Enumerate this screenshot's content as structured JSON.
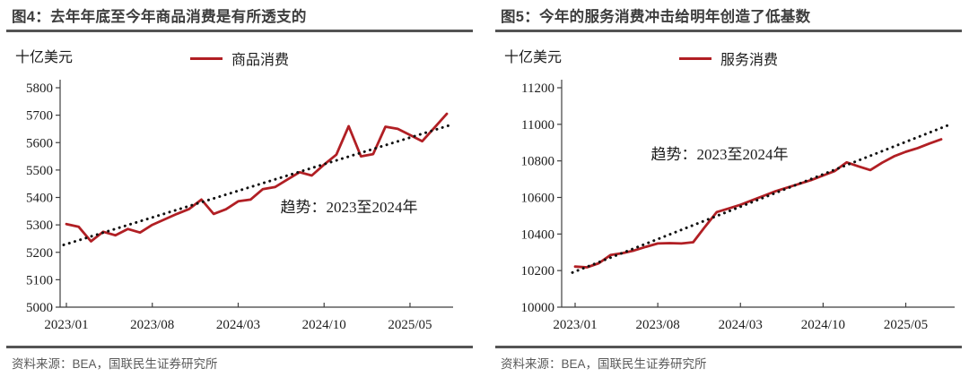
{
  "colors": {
    "line_red": "#b11f24",
    "trend_dot": "#111111",
    "title_text": "#3d3d3d",
    "rule": "#545454",
    "source_text": "#595959",
    "axis_line": "#3f3f3f",
    "tick_text": "#1c1c1c"
  },
  "panels": [
    {
      "title": "图4：去年年底至今年商品消费是有所透支的",
      "unit": "十亿美元",
      "legend": "商品消费",
      "source": "资料来源：BEA，国联民生证券研究所"
    },
    {
      "title": "图5：今年的服务消费冲击给明年创造了低基数",
      "unit": "十亿美元",
      "legend": "服务消费",
      "source": "资料来源：BEA，国联民生证券研究所"
    }
  ],
  "chart_data": [
    {
      "type": "line",
      "title": "图4：去年年底至今年商品消费是有所透支的",
      "ylabel": "十亿美元",
      "ylim": [
        5000,
        5800
      ],
      "y_ticks": [
        5000,
        5100,
        5200,
        5300,
        5400,
        5500,
        5600,
        5700,
        5800
      ],
      "grid": false,
      "legend_position": "top-center",
      "annotation": "趋势：2023至2024年",
      "x": [
        "2023/01",
        "2023/02",
        "2023/03",
        "2023/04",
        "2023/05",
        "2023/06",
        "2023/07",
        "2023/08",
        "2023/09",
        "2023/10",
        "2023/11",
        "2023/12",
        "2024/01",
        "2024/02",
        "2024/03",
        "2024/04",
        "2024/05",
        "2024/06",
        "2024/07",
        "2024/08",
        "2024/09",
        "2024/10",
        "2024/11",
        "2024/12",
        "2025/01",
        "2025/02",
        "2025/03",
        "2025/04",
        "2025/05",
        "2025/06",
        "2025/07",
        "2025/08"
      ],
      "x_tick_labels": [
        "2023/01",
        "2023/08",
        "2024/03",
        "2024/10",
        "2025/05"
      ],
      "x_tick_indices": [
        0,
        7,
        14,
        21,
        28
      ],
      "series": [
        {
          "name": "商品消费",
          "style": "solid",
          "color": "#b11f24",
          "values": [
            5303,
            5293,
            5240,
            5275,
            5262,
            5285,
            5272,
            5300,
            5320,
            5340,
            5358,
            5392,
            5340,
            5357,
            5386,
            5392,
            5430,
            5438,
            5465,
            5492,
            5480,
            5520,
            5556,
            5660,
            5550,
            5558,
            5658,
            5650,
            5628,
            5605,
            5655,
            5705
          ]
        },
        {
          "name": "趋势：2023至2024年",
          "style": "dotted",
          "color": "#111111",
          "trend_linear": {
            "start": 5230,
            "end": 5660
          }
        }
      ]
    },
    {
      "type": "line",
      "title": "图5：今年的服务消费冲击给明年创造了低基数",
      "ylabel": "十亿美元",
      "ylim": [
        10000,
        11200
      ],
      "y_ticks": [
        10000,
        10200,
        10400,
        10600,
        10800,
        11000,
        11200
      ],
      "grid": false,
      "legend_position": "top-center",
      "annotation": "趋势：2023至2024年",
      "x": [
        "2023/01",
        "2023/02",
        "2023/03",
        "2023/04",
        "2023/05",
        "2023/06",
        "2023/07",
        "2023/08",
        "2023/09",
        "2023/10",
        "2023/11",
        "2023/12",
        "2024/01",
        "2024/02",
        "2024/03",
        "2024/04",
        "2024/05",
        "2024/06",
        "2024/07",
        "2024/08",
        "2024/09",
        "2024/10",
        "2024/11",
        "2024/12",
        "2025/01",
        "2025/02",
        "2025/03",
        "2025/04",
        "2025/05",
        "2025/06",
        "2025/07",
        "2025/08"
      ],
      "x_tick_labels": [
        "2023/01",
        "2023/08",
        "2024/03",
        "2024/10",
        "2025/05"
      ],
      "x_tick_indices": [
        0,
        7,
        14,
        21,
        28
      ],
      "series": [
        {
          "name": "服务消费",
          "style": "solid",
          "color": "#b11f24",
          "values": [
            10222,
            10218,
            10240,
            10285,
            10295,
            10310,
            10330,
            10348,
            10350,
            10348,
            10355,
            10440,
            10520,
            10540,
            10560,
            10585,
            10610,
            10635,
            10655,
            10675,
            10695,
            10720,
            10745,
            10792,
            10770,
            10750,
            10790,
            10825,
            10850,
            10870,
            10895,
            10918
          ]
        },
        {
          "name": "趋势：2023至2024年",
          "style": "dotted",
          "color": "#111111",
          "trend_linear": {
            "start": 10195,
            "end": 10980
          }
        }
      ]
    }
  ]
}
